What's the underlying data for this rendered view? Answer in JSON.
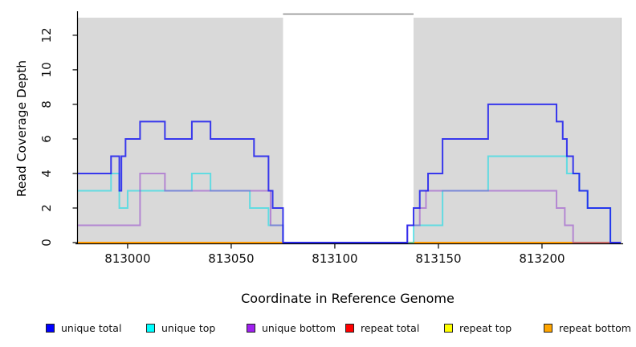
{
  "chart_data": {
    "type": "line",
    "subtype": "step-coverage",
    "title": "",
    "xlabel": "Coordinate in Reference Genome",
    "ylabel": "Read Coverage Depth",
    "x_ticks": [
      813000,
      813050,
      813100,
      813150,
      813200
    ],
    "y_ticks": [
      0,
      2,
      4,
      6,
      8,
      10,
      12
    ],
    "x_range": [
      812976,
      813238
    ],
    "y_range": [
      0,
      13.25
    ],
    "grid": false,
    "plot_bg": "#d9d9d9",
    "gap_region": [
      813075,
      813138
    ],
    "shaded_regions": [
      [
        812976,
        813075
      ],
      [
        813138,
        813238
      ]
    ],
    "series": [
      {
        "name": "repeat total",
        "color": "#dd0000",
        "opacity": 1,
        "steps": [
          [
            812976,
            0
          ],
          [
            813238,
            0
          ]
        ]
      },
      {
        "name": "repeat top",
        "color": "#ffff00",
        "opacity": 1,
        "steps": [
          [
            812976,
            0
          ],
          [
            813238,
            0
          ]
        ]
      },
      {
        "name": "repeat bottom",
        "color": "#ff9a00",
        "opacity": 1,
        "steps": [
          [
            812976,
            0
          ],
          [
            813238,
            0
          ]
        ]
      },
      {
        "name": "unique top",
        "color": "#00dde8",
        "opacity": 0.55,
        "steps": [
          [
            812976,
            3
          ],
          [
            812992,
            4
          ],
          [
            812996,
            2
          ],
          [
            813000,
            3
          ],
          [
            813031,
            4
          ],
          [
            813040,
            3
          ],
          [
            813059,
            2
          ],
          [
            813068,
            1
          ],
          [
            813075,
            0
          ],
          [
            813138,
            1
          ],
          [
            813152,
            3
          ],
          [
            813174,
            5
          ],
          [
            813212,
            4
          ],
          [
            813218,
            3
          ],
          [
            813222,
            2
          ],
          [
            813233,
            0
          ],
          [
            813238,
            0
          ]
        ]
      },
      {
        "name": "unique bottom",
        "color": "#8f35cc",
        "opacity": 0.5,
        "steps": [
          [
            812976,
            1
          ],
          [
            813006,
            4
          ],
          [
            813018,
            3
          ],
          [
            813069,
            1
          ],
          [
            813075,
            0
          ],
          [
            813135,
            1
          ],
          [
            813141,
            2
          ],
          [
            813144,
            3
          ],
          [
            813207,
            2
          ],
          [
            813211,
            1
          ],
          [
            813215,
            0
          ],
          [
            813238,
            0
          ]
        ]
      },
      {
        "name": "unique total",
        "color": "#1a1aee",
        "opacity": 0.85,
        "steps": [
          [
            812976,
            4
          ],
          [
            812992,
            5
          ],
          [
            812996,
            3
          ],
          [
            812997,
            5
          ],
          [
            812999,
            6
          ],
          [
            813006,
            7
          ],
          [
            813018,
            6
          ],
          [
            813031,
            7
          ],
          [
            813040,
            6
          ],
          [
            813061,
            5
          ],
          [
            813068,
            3
          ],
          [
            813070,
            2
          ],
          [
            813075,
            0
          ],
          [
            813135,
            1
          ],
          [
            813138,
            2
          ],
          [
            813141,
            3
          ],
          [
            813145,
            4
          ],
          [
            813152,
            6
          ],
          [
            813174,
            8
          ],
          [
            813207,
            7
          ],
          [
            813210,
            6
          ],
          [
            813212,
            5
          ],
          [
            813215,
            4
          ],
          [
            813218,
            3
          ],
          [
            813222,
            2
          ],
          [
            813233,
            0
          ],
          [
            813238,
            0
          ]
        ]
      }
    ]
  },
  "legend": {
    "items": [
      {
        "label": "unique total",
        "color": "#0000ff"
      },
      {
        "label": "unique top",
        "color": "#00ffff"
      },
      {
        "label": "unique bottom",
        "color": "#a020f0"
      },
      {
        "label": "repeat total",
        "color": "#ff0000"
      },
      {
        "label": "repeat top",
        "color": "#ffff00"
      },
      {
        "label": "repeat bottom",
        "color": "#ffa500"
      }
    ]
  }
}
